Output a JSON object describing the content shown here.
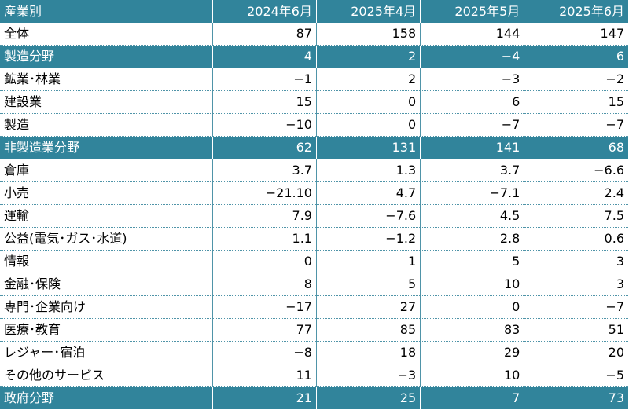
{
  "table": {
    "header": [
      "産業別",
      "2024年6月",
      "2025年4月",
      "2025年5月",
      "2025年6月"
    ],
    "rows": [
      {
        "label": "全体",
        "section": false,
        "values": [
          "87",
          "158",
          "144",
          "147"
        ]
      },
      {
        "label": "製造分野",
        "section": true,
        "values": [
          "4",
          "2",
          "−4",
          "6"
        ]
      },
      {
        "label": "鉱業･林業",
        "section": false,
        "values": [
          "−1",
          "2",
          "−3",
          "−2"
        ]
      },
      {
        "label": "建設業",
        "section": false,
        "values": [
          "15",
          "0",
          "6",
          "15"
        ]
      },
      {
        "label": "製造",
        "section": false,
        "values": [
          "−10",
          "0",
          "−7",
          "−7"
        ]
      },
      {
        "label": "非製造業分野",
        "section": true,
        "values": [
          "62",
          "131",
          "141",
          "68"
        ]
      },
      {
        "label": "倉庫",
        "section": false,
        "values": [
          "3.7",
          "1.3",
          "3.7",
          "−6.6"
        ]
      },
      {
        "label": "小売",
        "section": false,
        "values": [
          "−21.10",
          "4.7",
          "−7.1",
          "2.4"
        ]
      },
      {
        "label": "運輸",
        "section": false,
        "values": [
          "7.9",
          "−7.6",
          "4.5",
          "7.5"
        ]
      },
      {
        "label": "公益(電気･ガス･水道)",
        "section": false,
        "values": [
          "1.1",
          "−1.2",
          "2.8",
          "0.6"
        ]
      },
      {
        "label": "情報",
        "section": false,
        "values": [
          "0",
          "1",
          "5",
          "3"
        ]
      },
      {
        "label": "金融･保険",
        "section": false,
        "values": [
          "8",
          "5",
          "10",
          "3"
        ]
      },
      {
        "label": "専門･企業向け",
        "section": false,
        "values": [
          "−17",
          "27",
          "0",
          "−7"
        ]
      },
      {
        "label": "医療･教育",
        "section": false,
        "values": [
          "77",
          "85",
          "83",
          "51"
        ]
      },
      {
        "label": "レジャー･宿泊",
        "section": false,
        "values": [
          "−8",
          "18",
          "29",
          "20"
        ]
      },
      {
        "label": "その他のサービス",
        "section": false,
        "values": [
          "11",
          "−3",
          "10",
          "−5"
        ]
      },
      {
        "label": "政府分野",
        "section": true,
        "values": [
          "21",
          "25",
          "7",
          "73"
        ]
      }
    ]
  },
  "colors": {
    "header_bg": "#31849b",
    "header_text": "#ffffff",
    "border": "#4f94a8"
  }
}
